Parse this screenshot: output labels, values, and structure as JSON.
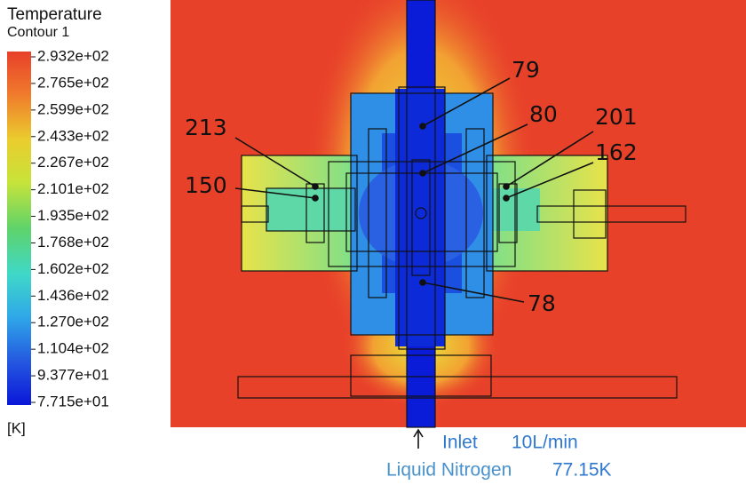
{
  "legend": {
    "title": "Temperature",
    "subtitle": "Contour 1",
    "levels": [
      "2.932e+02",
      "2.765e+02",
      "2.599e+02",
      "2.433e+02",
      "2.267e+02",
      "2.101e+02",
      "1.935e+02",
      "1.768e+02",
      "1.602e+02",
      "1.436e+02",
      "1.270e+02",
      "1.104e+02",
      "9.377e+01",
      "7.715e+01"
    ],
    "unit": "[K]"
  },
  "points": [
    {
      "label": "79"
    },
    {
      "label": "80"
    },
    {
      "label": "201"
    },
    {
      "label": "162"
    },
    {
      "label": "213"
    },
    {
      "label": "150"
    },
    {
      "label": "78"
    }
  ],
  "inlet": {
    "label": "Inlet",
    "flow": "10L/min",
    "fluid": "Liquid Nitrogen",
    "temperature": "77.15K"
  }
}
